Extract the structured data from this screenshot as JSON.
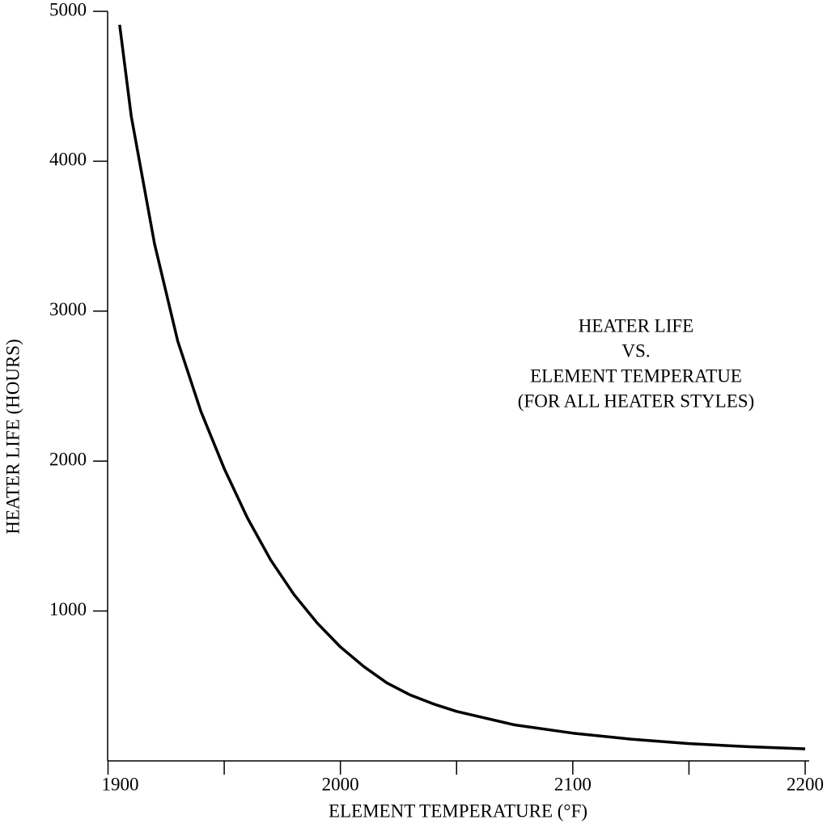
{
  "chart_data": {
    "type": "line",
    "xlabel": "ELEMENT TEMPERATURE (°F)",
    "ylabel": "HEATER LIFE (HOURS)",
    "annotations": [
      "HEATER LIFE",
      "VS.",
      "ELEMENT TEMPERATUE",
      "(FOR ALL HEATER STYLES)"
    ],
    "x": [
      1905,
      1910,
      1920,
      1930,
      1940,
      1950,
      1960,
      1970,
      1980,
      1990,
      2000,
      2010,
      2020,
      2030,
      2040,
      2050,
      2075,
      2100,
      2125,
      2150,
      2175,
      2200
    ],
    "series": [
      {
        "color": "#000000",
        "values": [
          4910,
          4300,
          3450,
          2800,
          2330,
          1950,
          1620,
          1340,
          1110,
          920,
          760,
          630,
          520,
          440,
          380,
          330,
          240,
          185,
          145,
          115,
          95,
          80
        ]
      }
    ],
    "xlim": [
      1900,
      2200
    ],
    "xticks": [
      1900,
      2000,
      2100,
      2200
    ],
    "xminorticks": [
      1950,
      2050,
      2150
    ],
    "ylim": [
      0,
      5000
    ],
    "yticks": [
      1000,
      2000,
      3000,
      4000,
      5000
    ]
  }
}
